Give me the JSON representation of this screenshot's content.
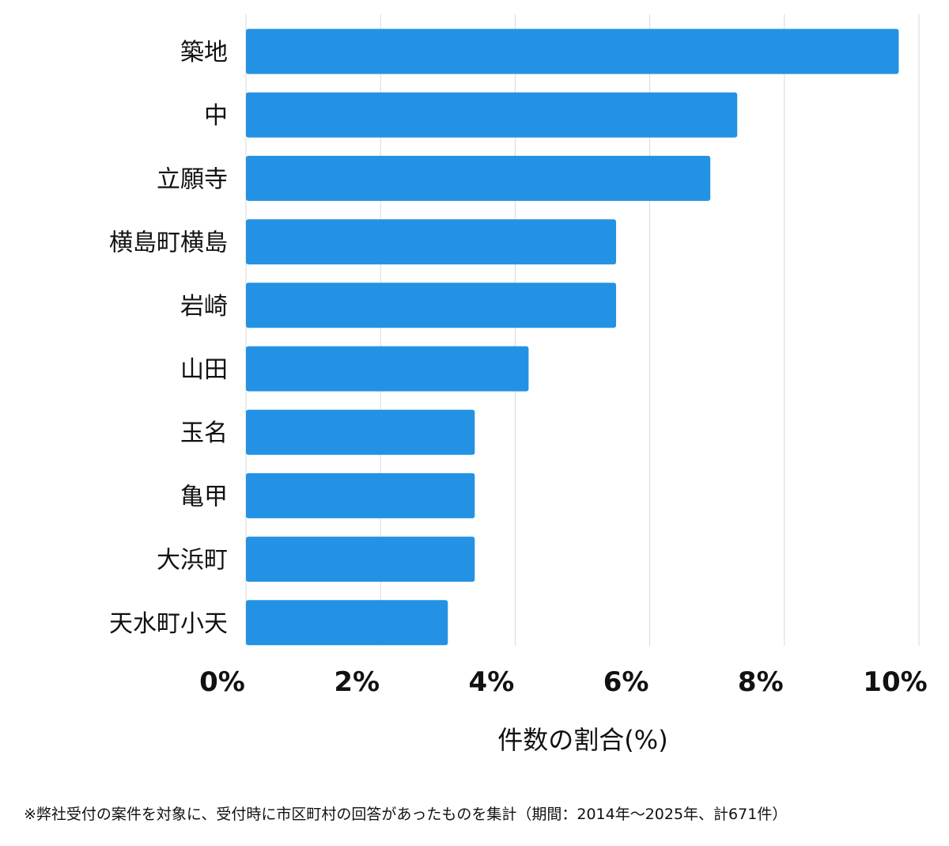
{
  "chart_data": {
    "type": "bar",
    "orientation": "horizontal",
    "categories": [
      "築地",
      "中",
      "立願寺",
      "横島町横島",
      "岩崎",
      "山田",
      "玉名",
      "亀甲",
      "大浜町",
      "天水町小天"
    ],
    "values": [
      9.7,
      7.3,
      6.9,
      5.5,
      5.5,
      4.2,
      3.4,
      3.4,
      3.4,
      3.0
    ],
    "xlabel": "件数の割合(%)",
    "xlim": [
      0,
      10
    ],
    "x_ticks": [
      "0%",
      "2%",
      "4%",
      "6%",
      "8%",
      "10%"
    ],
    "grid": "vertical",
    "bar_color": "#2492e4"
  },
  "footnote": "※弊社受付の案件を対象に、受付時に市区町村の回答があったものを集計（期間：2014年～2025年、計671件）"
}
